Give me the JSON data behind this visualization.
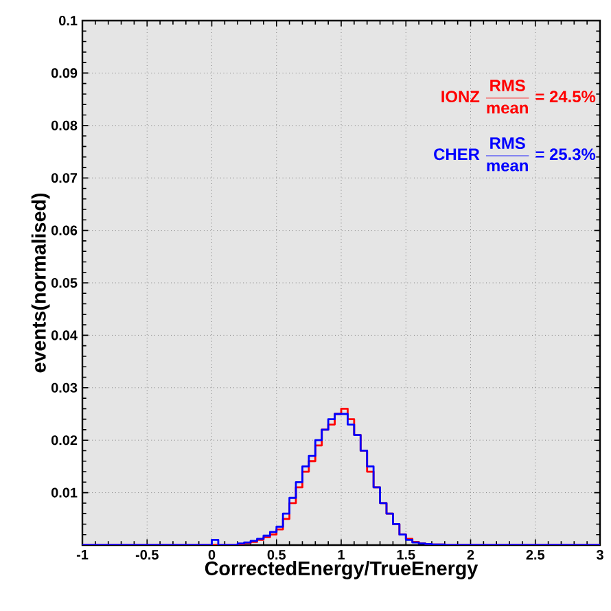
{
  "chart_data": {
    "type": "histogram",
    "xlabel": "CorrectedEnergy/TrueEnergy",
    "ylabel": "events(normalised)",
    "bins": [
      -1,
      0,
      0.05,
      0.2,
      0.25,
      0.3,
      0.35,
      0.4,
      0.45,
      0.5,
      0.55,
      0.6,
      0.65,
      0.7,
      0.75,
      0.8,
      0.85,
      0.9,
      0.95,
      1.0,
      1.05,
      1.1,
      1.15,
      1.2,
      1.25,
      1.3,
      1.35,
      1.4,
      1.45,
      1.5,
      1.55,
      1.6,
      1.65,
      1.7,
      1.75,
      1.8,
      3
    ],
    "series": [
      {
        "color": "#ff0000",
        "values": [
          0,
          0,
          0,
          0.0002,
          0.0004,
          0.0006,
          0.001,
          0.0015,
          0.002,
          0.003,
          0.005,
          0.008,
          0.011,
          0.014,
          0.016,
          0.019,
          0.022,
          0.023,
          0.025,
          0.026,
          0.024,
          0.021,
          0.018,
          0.014,
          0.011,
          0.008,
          0.006,
          0.004,
          0.002,
          0.0012,
          0.0006,
          0.0003,
          0.0002,
          0.0001,
          0.0001,
          0
        ]
      },
      {
        "color": "#0000ff",
        "values": [
          0,
          0.001,
          0,
          0.0003,
          0.0005,
          0.0008,
          0.0012,
          0.0018,
          0.0025,
          0.0035,
          0.006,
          0.009,
          0.012,
          0.015,
          0.017,
          0.02,
          0.022,
          0.024,
          0.025,
          0.025,
          0.023,
          0.021,
          0.018,
          0.015,
          0.011,
          0.008,
          0.006,
          0.004,
          0.002,
          0.001,
          0.0005,
          0.0003,
          0.0002,
          0.0001,
          0.0001,
          0
        ]
      }
    ],
    "annotations": [
      "\\textbf{IONZ }\\frac{\\textbf{RMS}}{\\textbf{mean}}\\textbf{ = 24.5\\%}",
      "\\textbf{CHER }\\frac{\\textbf{RMS}}{\\textbf{mean}}\\textbf{ = 25.3\\%}"
    ],
    "xlim": [
      -1,
      3
    ],
    "ylim": [
      0,
      0.1
    ],
    "xticks": [
      -1,
      -0.5,
      0,
      0.5,
      1,
      1.5,
      2,
      2.5,
      3
    ],
    "yticks": [
      {
        "value": 0,
        "label": null
      },
      0.01,
      0.02,
      0.03,
      0.04,
      0.05,
      0.06,
      0.07,
      0.08,
      0.09,
      0.1
    ],
    "grid": true
  }
}
